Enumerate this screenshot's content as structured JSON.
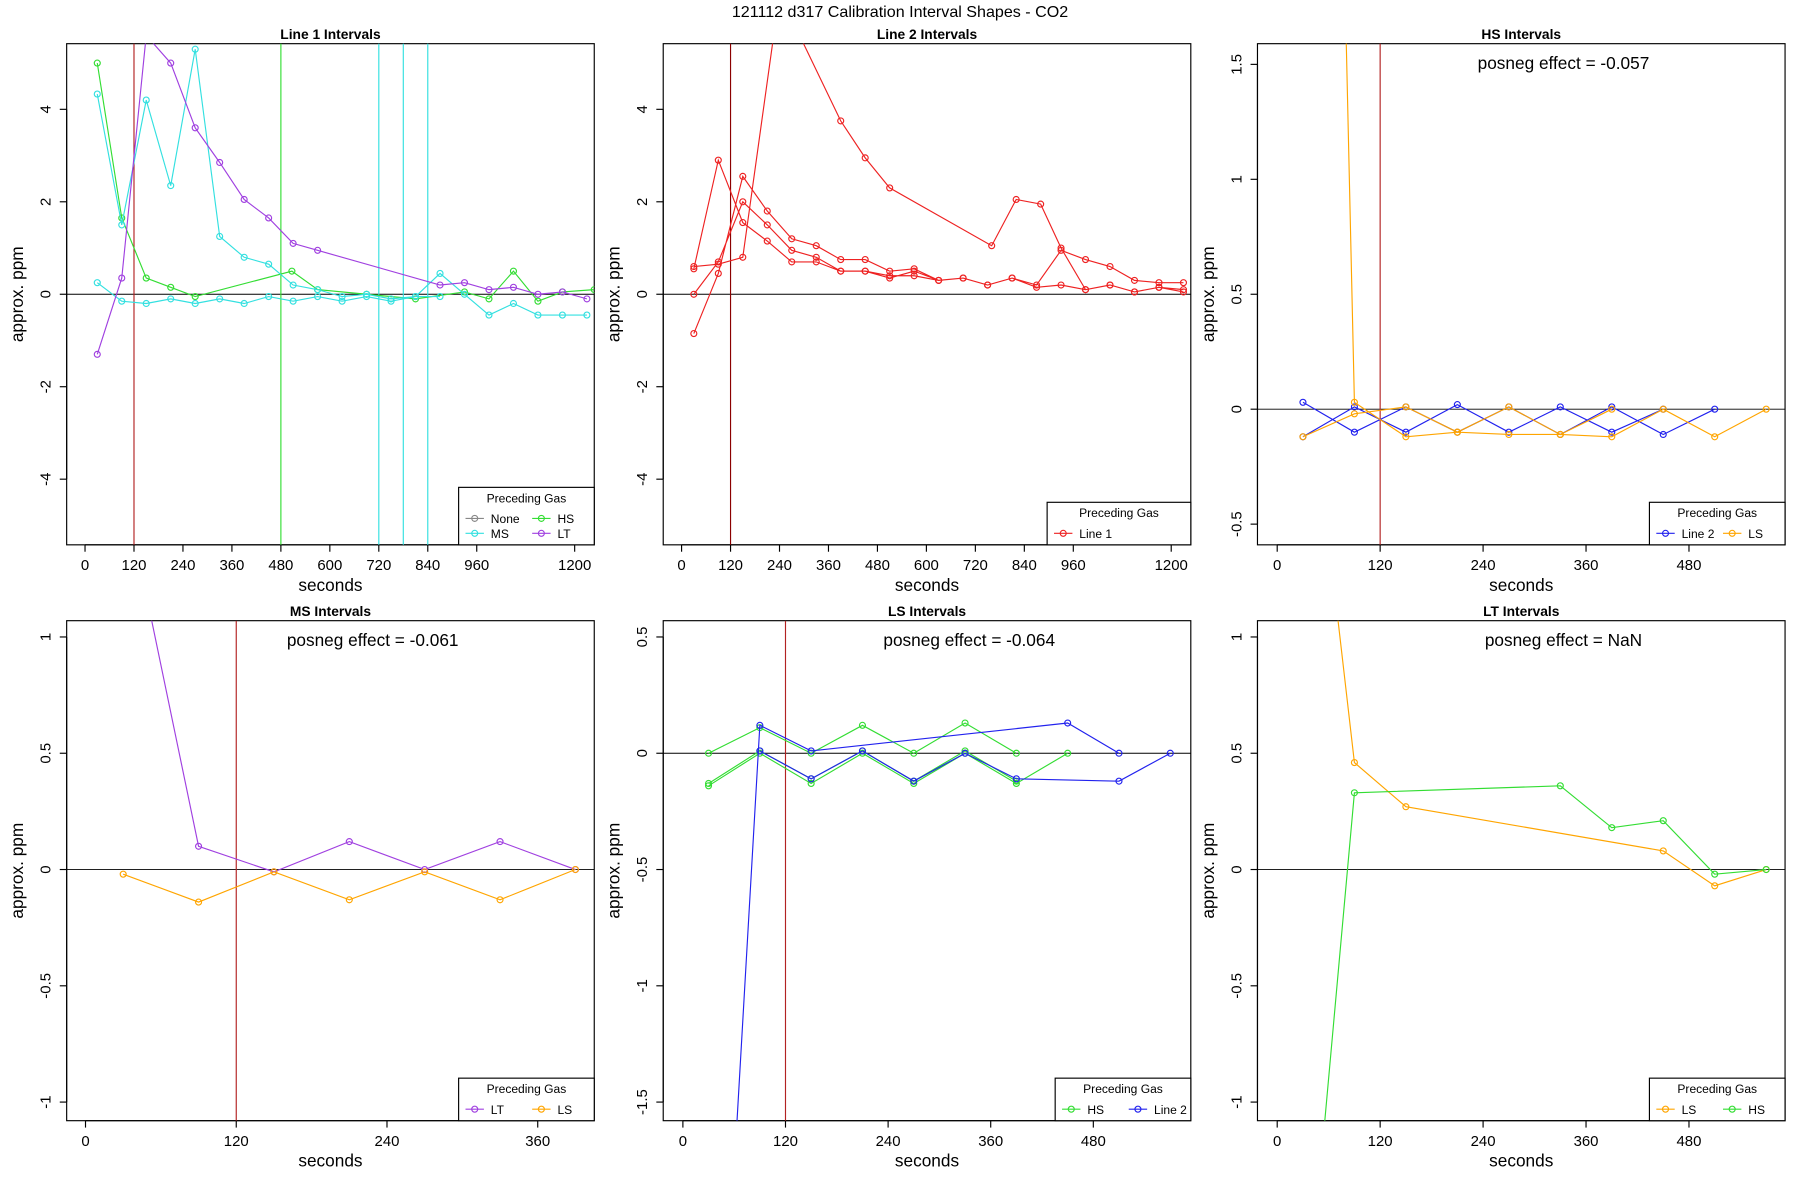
{
  "title": "121112  d317   Calibration Interval Shapes - CO2",
  "chart_data": [
    {
      "type": "line",
      "title": "Line 1 Intervals",
      "xlabel": "seconds",
      "ylabel": "approx. ppm",
      "xlim": [
        -45,
        1248
      ],
      "ylim": [
        -5.42,
        5.42
      ],
      "xticks": [
        0,
        120,
        240,
        360,
        480,
        600,
        720,
        840,
        960,
        1200
      ],
      "yticks": [
        -4,
        -2,
        0,
        2,
        4
      ],
      "hline": 0,
      "vlines": [
        {
          "x": 120,
          "color": "#b22222"
        },
        {
          "x": 480,
          "color": "#33dd33"
        },
        {
          "x": 720,
          "color": "#33e0e0"
        },
        {
          "x": 780,
          "color": "#33e0e0"
        },
        {
          "x": 840,
          "color": "#33e0e0"
        }
      ],
      "legend_title": "Preceding Gas",
      "series": [
        {
          "name": "None",
          "color": "#888888",
          "x": [],
          "values": []
        },
        {
          "name": "HS",
          "color": "#33dd33",
          "x": [
            30,
            90,
            150,
            210,
            270,
            507,
            570,
            690,
            810,
            930,
            990,
            1050,
            1110,
            1170,
            1248
          ],
          "values": [
            5.0,
            1.65,
            0.35,
            0.15,
            -0.05,
            0.5,
            0.1,
            0,
            -0.1,
            0.05,
            -0.1,
            0.5,
            -0.15,
            0.05,
            0.1
          ]
        },
        {
          "name": "MS",
          "color": "#33e0e0",
          "x": [
            30,
            90,
            150,
            210,
            270,
            330,
            390,
            450,
            510,
            570,
            630,
            690,
            750,
            810,
            870,
            null,
            30,
            90,
            150,
            210,
            270,
            330,
            390,
            450,
            510,
            570,
            630,
            690,
            750,
            810,
            870,
            930,
            990,
            1050,
            1110,
            1170,
            1230
          ],
          "values": [
            4.33,
            1.5,
            4.2,
            2.35,
            5.3,
            1.25,
            0.8,
            0.65,
            0.2,
            0.1,
            -0.05,
            0,
            -0.1,
            -0.05,
            -0.05,
            null,
            0.25,
            -0.15,
            -0.2,
            -0.1,
            -0.2,
            -0.1,
            -0.2,
            -0.05,
            -0.15,
            -0.05,
            -0.15,
            -0.05,
            -0.15,
            -0.05,
            0.45,
            0,
            -0.45,
            -0.2,
            -0.45,
            -0.45,
            -0.45
          ]
        },
        {
          "name": "LT",
          "color": "#a040e0",
          "x": [
            30,
            90,
            150,
            210,
            270,
            330,
            390,
            450,
            510,
            570,
            870,
            930,
            990,
            1050,
            1110,
            1170,
            1230
          ],
          "values": [
            -1.3,
            0.35,
            5.6,
            5.0,
            3.6,
            2.85,
            2.05,
            1.65,
            1.1,
            0.95,
            0.2,
            0.25,
            0.1,
            0.15,
            0,
            0.05,
            -0.1
          ]
        }
      ]
    },
    {
      "type": "line",
      "title": "Line 2 Intervals",
      "xlabel": "seconds",
      "ylabel": "approx. ppm",
      "xlim": [
        -45,
        1248
      ],
      "ylim": [
        -5.42,
        5.42
      ],
      "xticks": [
        0,
        120,
        240,
        360,
        480,
        600,
        720,
        840,
        960,
        1200
      ],
      "yticks": [
        -4,
        -2,
        0,
        2,
        4
      ],
      "hline": 0,
      "vlines": [
        {
          "x": 120,
          "color": "#8b0000"
        }
      ],
      "legend_title": "Preceding Gas",
      "series": [
        {
          "name": "Line 1",
          "color": "#ee2222",
          "x": [
            30,
            90,
            150,
            210,
            270,
            330,
            390,
            450,
            510,
            570,
            630,
            690,
            750,
            810,
            870,
            930,
            990,
            1050,
            1110,
            1170,
            1230,
            null,
            30,
            90,
            150,
            240,
            390,
            450,
            510,
            760,
            820,
            880,
            930,
            990,
            1050,
            1110,
            1170,
            1230,
            null,
            30,
            90,
            150,
            210,
            270,
            330,
            390,
            450,
            510,
            570,
            630,
            690,
            750,
            810,
            870,
            930,
            990,
            1050,
            1110,
            1170,
            1230,
            null,
            30,
            90,
            150,
            210,
            270,
            330,
            390,
            450,
            510,
            570,
            630
          ],
          "values": [
            -0.85,
            0.45,
            2.55,
            1.8,
            1.2,
            1.05,
            0.75,
            0.75,
            0.5,
            0.55,
            0.3,
            0.35,
            0.2,
            0.35,
            0.2,
            0.95,
            0.75,
            0.6,
            0.3,
            0.25,
            0.25,
            null,
            0.6,
            0.65,
            0.8,
            6.5,
            3.75,
            2.95,
            2.3,
            1.05,
            2.05,
            1.95,
            1.0,
            0.1,
            0.2,
            0.05,
            0.15,
            0.1,
            null,
            0.0,
            0.7,
            2.0,
            1.5,
            0.95,
            0.8,
            0.5,
            0.5,
            0.4,
            0.4,
            0.3,
            0.35,
            0.2,
            0.35,
            0.15,
            0.2,
            0.1,
            0.2,
            0.05,
            0.15,
            0.05,
            null,
            0.55,
            2.9,
            1.55,
            1.15,
            0.7,
            0.7,
            0.5,
            0.5,
            0.35,
            0.5,
            0.3
          ]
        }
      ]
    },
    {
      "type": "line",
      "title": "HS Intervals",
      "xlabel": "seconds",
      "ylabel": "approx. ppm",
      "xlim": [
        -23,
        592
      ],
      "ylim": [
        -0.59,
        1.59
      ],
      "xticks": [
        0,
        120,
        240,
        360,
        480
      ],
      "yticks": [
        -0.5,
        0.0,
        0.5,
        1.0,
        1.5
      ],
      "hline": 0,
      "vlines": [
        {
          "x": 120,
          "color": "#b22222"
        }
      ],
      "annotation": "posneg effect = -0.057",
      "legend_title": "Preceding Gas",
      "series": [
        {
          "name": "Line 2",
          "color": "#2222ee",
          "x": [
            30,
            90,
            150,
            210,
            270,
            330,
            390,
            450,
            510,
            null,
            30,
            90,
            150,
            210,
            270,
            330,
            390,
            450
          ],
          "values": [
            0.03,
            -0.1,
            0.01,
            -0.1,
            0.01,
            -0.11,
            0.01,
            -0.11,
            0,
            null,
            -0.12,
            0.01,
            -0.1,
            0.02,
            -0.1,
            0.01,
            -0.1,
            0
          ]
        },
        {
          "name": "LS",
          "color": "#ffa500",
          "x": [
            75,
            90,
            150,
            210,
            270,
            330,
            390,
            450,
            510,
            570,
            null,
            30,
            90,
            150,
            210,
            270,
            330,
            390
          ],
          "values": [
            2.5,
            0.03,
            -0.12,
            -0.1,
            -0.11,
            -0.11,
            -0.12,
            0,
            -0.12,
            0,
            null,
            -0.12,
            -0.02,
            0.01,
            -0.1,
            0.01,
            -0.11,
            0
          ]
        }
      ]
    },
    {
      "type": "line",
      "title": "MS Intervals",
      "xlabel": "seconds",
      "ylabel": "approx. ppm",
      "xlim": [
        -15,
        405
      ],
      "ylim": [
        -1.08,
        1.07
      ],
      "xticks": [
        0,
        120,
        240,
        360
      ],
      "yticks": [
        -1.0,
        -0.5,
        0.0,
        0.5,
        1.0
      ],
      "hline": 0,
      "vlines": [
        {
          "x": 120,
          "color": "#b22222"
        }
      ],
      "annotation": "posneg effect = -0.061",
      "legend_title": "Preceding Gas",
      "series": [
        {
          "name": "LT",
          "color": "#a040e0",
          "x": [
            40,
            90,
            150,
            210,
            270,
            330,
            390
          ],
          "values": [
            1.4,
            0.1,
            -0.01,
            0.12,
            0,
            0.12,
            0
          ]
        },
        {
          "name": "LS",
          "color": "#ffa500",
          "x": [
            30,
            90,
            150,
            210,
            270,
            330,
            390
          ],
          "values": [
            -0.02,
            -0.14,
            -0.01,
            -0.13,
            -0.01,
            -0.13,
            0
          ]
        }
      ]
    },
    {
      "type": "line",
      "title": "LS Intervals",
      "xlabel": "seconds",
      "ylabel": "approx. ppm",
      "xlim": [
        -23,
        594
      ],
      "ylim": [
        -1.58,
        0.57
      ],
      "xticks": [
        0,
        120,
        240,
        360,
        480
      ],
      "yticks": [
        -1.5,
        -1.0,
        -0.5,
        0.0,
        0.5
      ],
      "hline": 0,
      "vlines": [
        {
          "x": 120,
          "color": "#b22222"
        }
      ],
      "annotation": "posneg effect = -0.064",
      "legend_title": "Preceding Gas",
      "series": [
        {
          "name": "HS",
          "color": "#33dd33",
          "x": [
            30,
            90,
            150,
            210,
            270,
            330,
            390,
            null,
            30,
            90,
            150,
            210,
            270,
            330,
            390,
            450,
            null,
            30,
            90,
            150,
            210,
            270,
            330,
            390
          ],
          "values": [
            0,
            0.11,
            0,
            0.12,
            0,
            0.13,
            0,
            null,
            -0.14,
            0,
            -0.13,
            0,
            -0.13,
            0,
            -0.13,
            0,
            null,
            -0.13,
            0.01,
            -0.11,
            0.01,
            -0.12,
            0.01,
            -0.12
          ]
        },
        {
          "name": "Line 2",
          "color": "#2222ee",
          "x": [
            63,
            90,
            150,
            450,
            510,
            null,
            90,
            150,
            210,
            270,
            330,
            390,
            510,
            570
          ],
          "values": [
            -1.6,
            0.12,
            0.01,
            0.13,
            0,
            null,
            0.01,
            -0.11,
            0.01,
            -0.12,
            0,
            -0.11,
            -0.12,
            0
          ]
        }
      ]
    },
    {
      "type": "line",
      "title": "LT Intervals",
      "xlabel": "seconds",
      "ylabel": "approx. ppm",
      "xlim": [
        -23,
        592
      ],
      "ylim": [
        -1.08,
        1.07
      ],
      "xticks": [
        0,
        120,
        240,
        360,
        480
      ],
      "yticks": [
        -1.0,
        -0.5,
        0.0,
        0.5,
        1.0
      ],
      "hline": 0,
      "vlines": [],
      "annotation": "posneg effect = NaN",
      "legend_title": "Preceding Gas",
      "series": [
        {
          "name": "LS",
          "color": "#ffa500",
          "x": [
            70,
            90,
            150,
            450,
            510,
            570
          ],
          "values": [
            1.1,
            0.46,
            0.27,
            0.08,
            -0.07,
            0
          ]
        },
        {
          "name": "HS",
          "color": "#33dd33",
          "x": [
            55,
            90,
            330,
            390,
            450,
            510,
            570
          ],
          "values": [
            -1.1,
            0.33,
            0.36,
            0.18,
            0.21,
            -0.02,
            0
          ]
        }
      ]
    }
  ]
}
